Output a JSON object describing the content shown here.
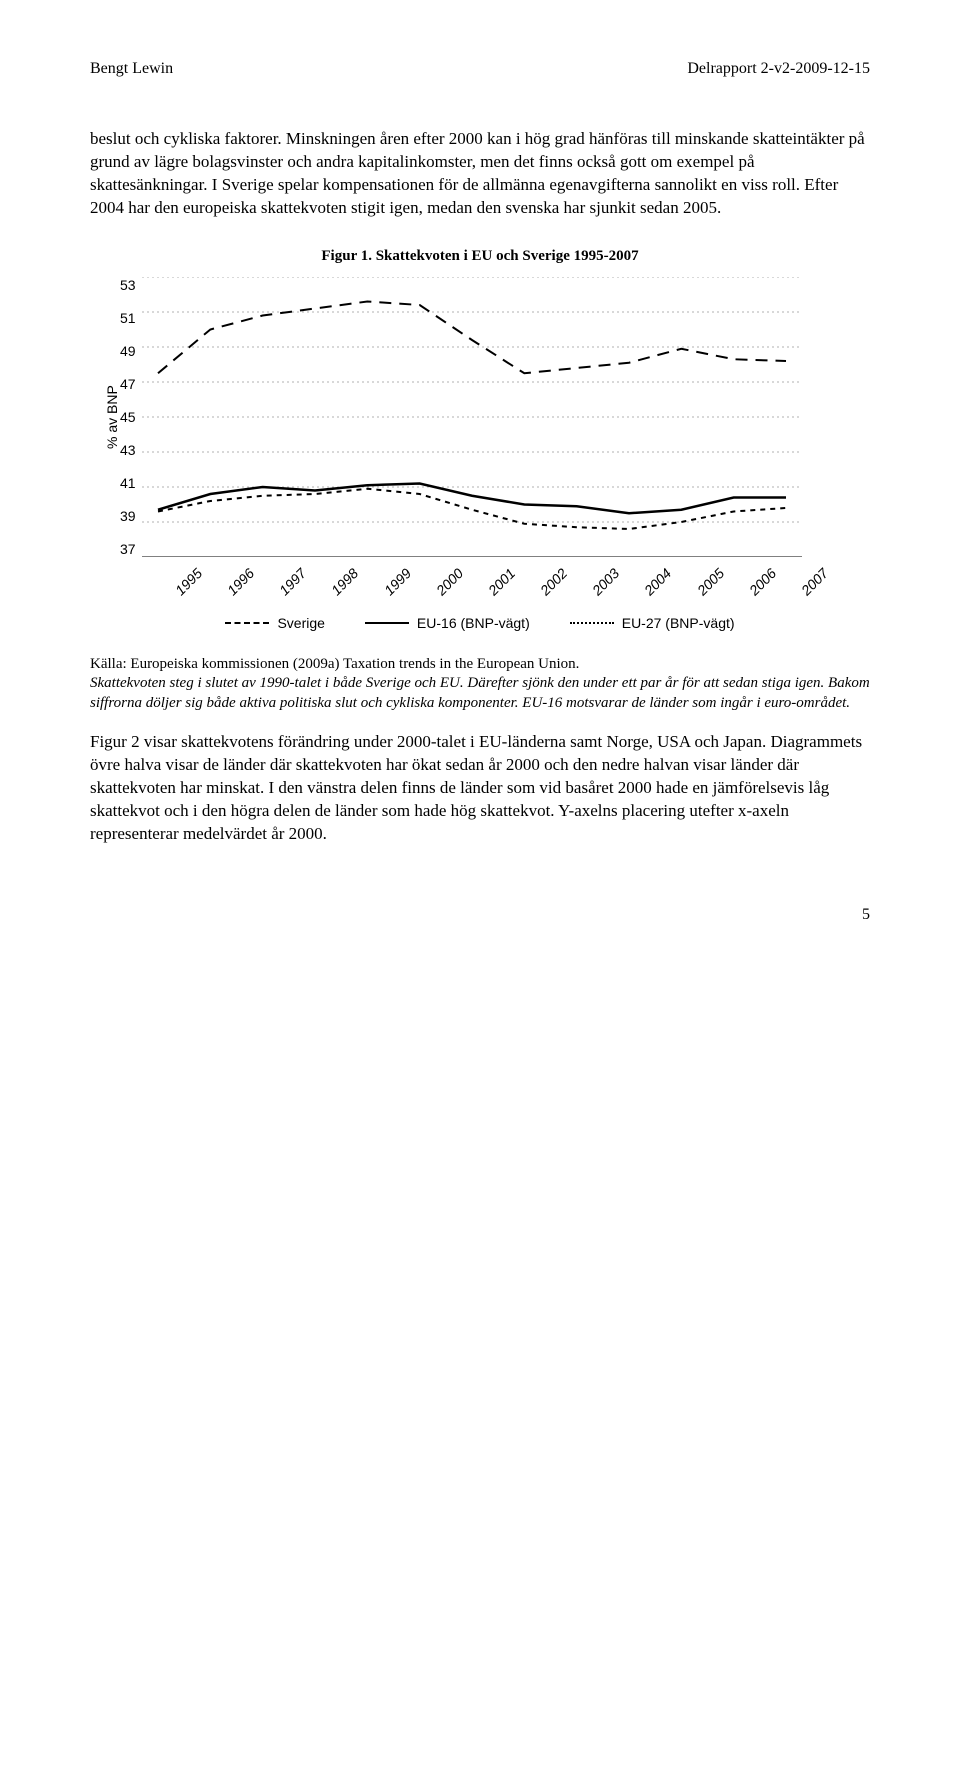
{
  "header": {
    "left": "Bengt Lewin",
    "right": "Delrapport 2-v2-2009-12-15"
  },
  "para1": "beslut och cykliska faktorer. Minskningen åren efter 2000 kan i hög grad hänföras till minskande skatteintäkter på grund av lägre bolagsvinster och andra kapitalinkomster, men det finns också gott om exempel på skattesänkningar. I Sverige spelar kompensationen för de allmänna egenavgifterna sannolikt en viss roll. Efter 2004 har den europeiska skattekvoten stigit igen, medan den svenska har sjunkit sedan 2005.",
  "chart": {
    "title": "Figur 1. Skattekvoten i EU och Sverige 1995-2007",
    "ylabel": "% av BNP",
    "ylim": [
      37,
      53
    ],
    "ytick_step": 2,
    "yticks": [
      "53",
      "51",
      "49",
      "47",
      "45",
      "43",
      "41",
      "39",
      "37"
    ],
    "xcategories": [
      "1995",
      "1996",
      "1997",
      "1998",
      "1999",
      "2000",
      "2001",
      "2002",
      "2003",
      "2004",
      "2005",
      "2006",
      "2007"
    ],
    "series": [
      {
        "name": "Sverige",
        "label": "Sverige",
        "color": "#000000",
        "width": 2,
        "dash": "12,8",
        "values": [
          47.5,
          50.0,
          50.8,
          51.2,
          51.6,
          51.4,
          49.4,
          47.5,
          47.8,
          48.1,
          48.9,
          48.3,
          48.2
        ]
      },
      {
        "name": "EU-16 (BNP-vägt)",
        "label": "EU-16 (BNP-vägt)",
        "color": "#000000",
        "width": 2.5,
        "dash": "",
        "values": [
          39.7,
          40.6,
          41.0,
          40.8,
          41.1,
          41.2,
          40.5,
          40.0,
          39.9,
          39.5,
          39.7,
          40.4,
          40.4
        ]
      },
      {
        "name": "EU-27 (BNP-vägt)",
        "label": "EU-27 (BNP-vägt)",
        "color": "#000000",
        "width": 2,
        "dash": "5,5",
        "values": [
          39.6,
          40.2,
          40.5,
          40.6,
          40.9,
          40.6,
          39.7,
          38.9,
          38.7,
          38.6,
          39.0,
          39.6,
          39.8
        ]
      }
    ],
    "grid_color": "#b0b0b0",
    "grid_dash": "2,3",
    "background_color": "#ffffff"
  },
  "caption": {
    "line1_plain": "Källa: Europeiska kommissionen (2009a) Taxation trends in the European Union.",
    "italic": "Skattekvoten steg i slutet av 1990-talet i både Sverige och EU. Därefter sjönk den under ett par år för att sedan stiga igen. Bakom siffrorna döljer sig både aktiva politiska slut och cykliska komponenter. EU-16 motsvarar de länder som ingår i euro-området."
  },
  "para2": "Figur 2 visar skattekvotens förändring under 2000-talet i EU-länderna samt Norge, USA och Japan. Diagrammets övre halva visar de länder där skattekvoten har ökat sedan år 2000 och den nedre halvan visar länder där skattekvoten har minskat. I den vänstra delen finns de länder som vid basåret 2000 hade en jämförelsevis låg skattekvot och i den högra delen de länder som hade hög skattekvot. Y-axelns placering utefter x-axeln representerar medelvärdet år 2000.",
  "page_number": "5"
}
